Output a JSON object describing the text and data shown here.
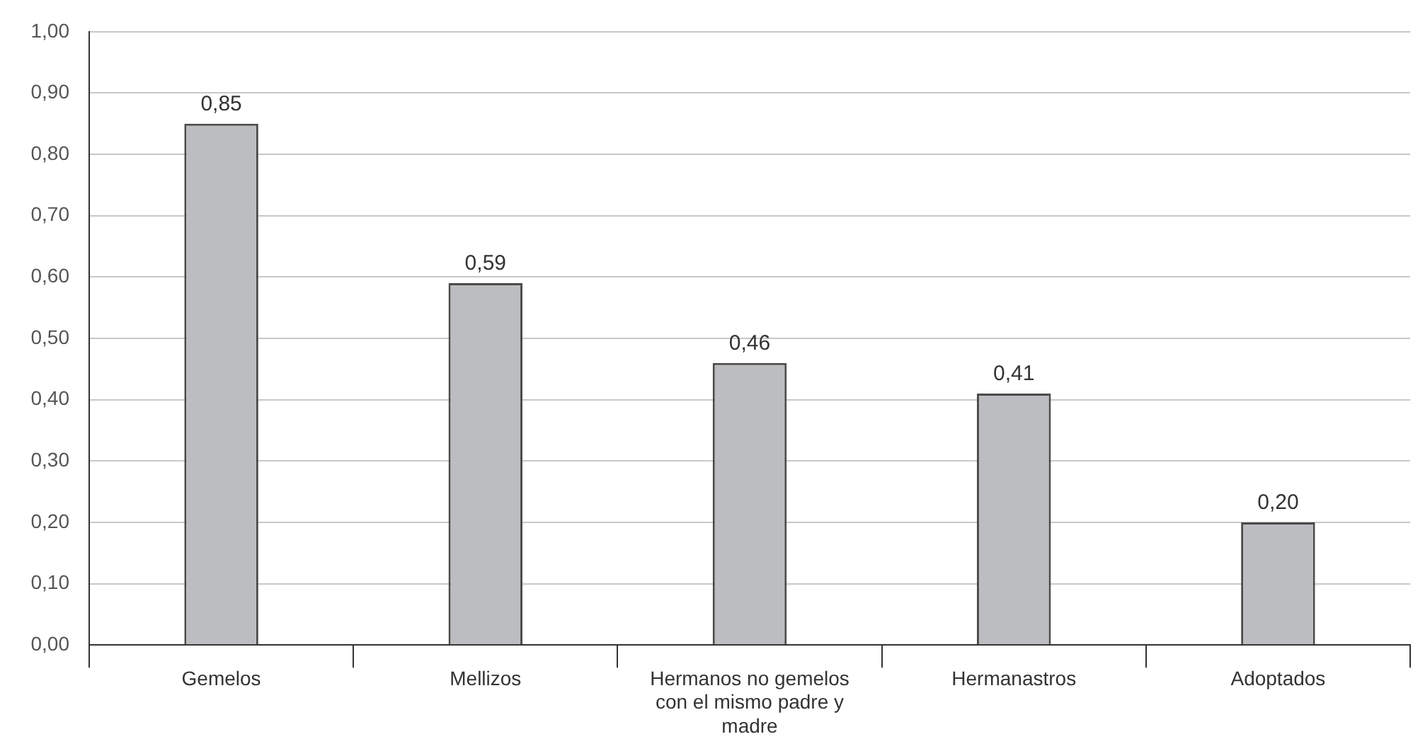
{
  "chart_data": {
    "type": "bar",
    "categories": [
      "Gemelos",
      "Mellizos",
      "Hermanos no gemelos con el mismo padre y madre",
      "Hermanastros",
      "Adoptados"
    ],
    "values": [
      0.85,
      0.59,
      0.46,
      0.41,
      0.2
    ],
    "value_labels": [
      "0,85",
      "0,59",
      "0,46",
      "0,41",
      "0,20"
    ],
    "color": "#bcbdc0",
    "ylim": [
      0,
      1
    ],
    "yticks": [
      {
        "value": 0,
        "label": "0,00"
      },
      {
        "value": 0.1,
        "label": "0,10"
      },
      {
        "value": 0.2,
        "label": "0,20"
      },
      {
        "value": 0.3,
        "label": "0,30"
      },
      {
        "value": 0.4,
        "label": "0,40"
      },
      {
        "value": 0.5,
        "label": "0,50"
      },
      {
        "value": 0.6,
        "label": "0,60"
      },
      {
        "value": 0.7,
        "label": "0,70"
      },
      {
        "value": 0.8,
        "label": "0,80"
      },
      {
        "value": 0.9,
        "label": "0,90"
      },
      {
        "value": 1,
        "label": "1,00"
      }
    ],
    "grid": "y"
  }
}
